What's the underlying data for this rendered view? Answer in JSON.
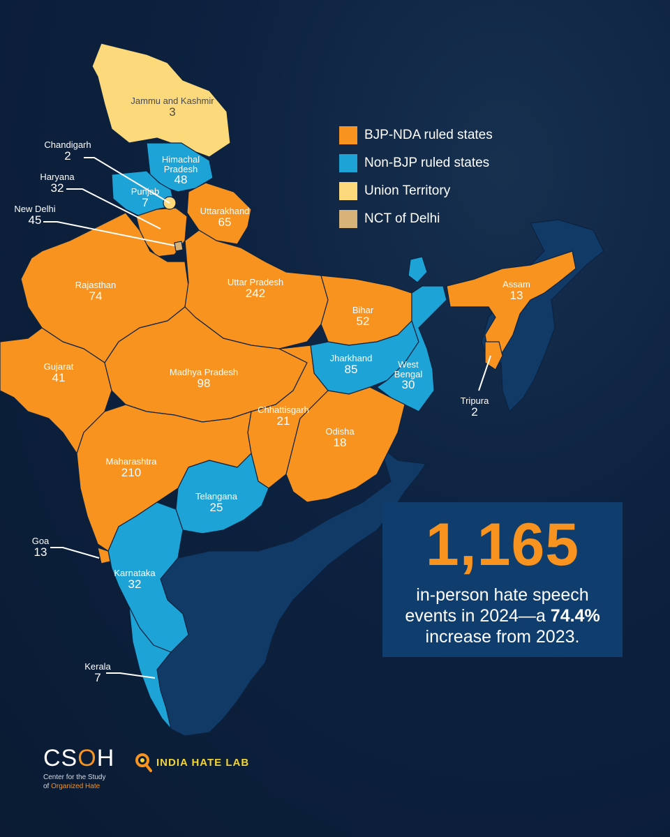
{
  "colors": {
    "bjp": "#f7931e",
    "non_bjp": "#1ea3d6",
    "ut": "#fcd97a",
    "delhi": "#d9b27a",
    "other": "#123a66",
    "background": "#0d2240"
  },
  "legend": {
    "items": [
      {
        "label": "BJP-NDA ruled states",
        "color": "#f7931e"
      },
      {
        "label": "Non-BJP ruled states",
        "color": "#1ea3d6"
      },
      {
        "label": "Union Territory",
        "color": "#fcd97a"
      },
      {
        "label": "NCT of Delhi",
        "color": "#d9b27a"
      }
    ]
  },
  "regions": {
    "jammu_kashmir": {
      "name": "Jammu and Kashmir",
      "value": "3"
    },
    "himachal": {
      "name": "Himachal Pradesh",
      "value": "48"
    },
    "punjab": {
      "name": "Punjab",
      "value": "7"
    },
    "uttarakhand": {
      "name": "Uttarakhand",
      "value": "65"
    },
    "rajasthan": {
      "name": "Rajasthan",
      "value": "74"
    },
    "uttar_pradesh": {
      "name": "Uttar Pradesh",
      "value": "242"
    },
    "bihar": {
      "name": "Bihar",
      "value": "52"
    },
    "assam": {
      "name": "Assam",
      "value": "13"
    },
    "gujarat": {
      "name": "Gujarat",
      "value": "41"
    },
    "madhya_pradesh": {
      "name": "Madhya Pradesh",
      "value": "98"
    },
    "jharkhand": {
      "name": "Jharkhand",
      "value": "85"
    },
    "west_bengal": {
      "name": "West Bengal",
      "value": "30"
    },
    "chhattisgarh": {
      "name": "Chhattisgarh",
      "value": "21"
    },
    "odisha": {
      "name": "Odisha",
      "value": "18"
    },
    "maharashtra": {
      "name": "Maharashtra",
      "value": "210"
    },
    "telangana": {
      "name": "Telangana",
      "value": "25"
    },
    "karnataka": {
      "name": "Karnataka",
      "value": "32"
    },
    "chandigarh": {
      "name": "Chandigarh",
      "value": "2"
    },
    "haryana": {
      "name": "Haryana",
      "value": "32"
    },
    "new_delhi": {
      "name": "New Delhi",
      "value": "45"
    },
    "tripura": {
      "name": "Tripura",
      "value": "2"
    },
    "goa": {
      "name": "Goa",
      "value": "13"
    },
    "kerala": {
      "name": "Kerala",
      "value": "7"
    }
  },
  "callout": {
    "big_number": "1,165",
    "text_line1": "in-person hate speech",
    "text_line2a": "events in 2024—a ",
    "text_line2b": "74.4%",
    "text_line3": "increase from 2023."
  },
  "logos": {
    "csoh_mark_a": "CS",
    "csoh_mark_o": "O",
    "csoh_mark_b": "H",
    "csoh_line1": "Center for the Study",
    "csoh_line2a": "of ",
    "csoh_line2b": "Organized Hate",
    "ihl_text": "INDIA HATE LAB"
  }
}
